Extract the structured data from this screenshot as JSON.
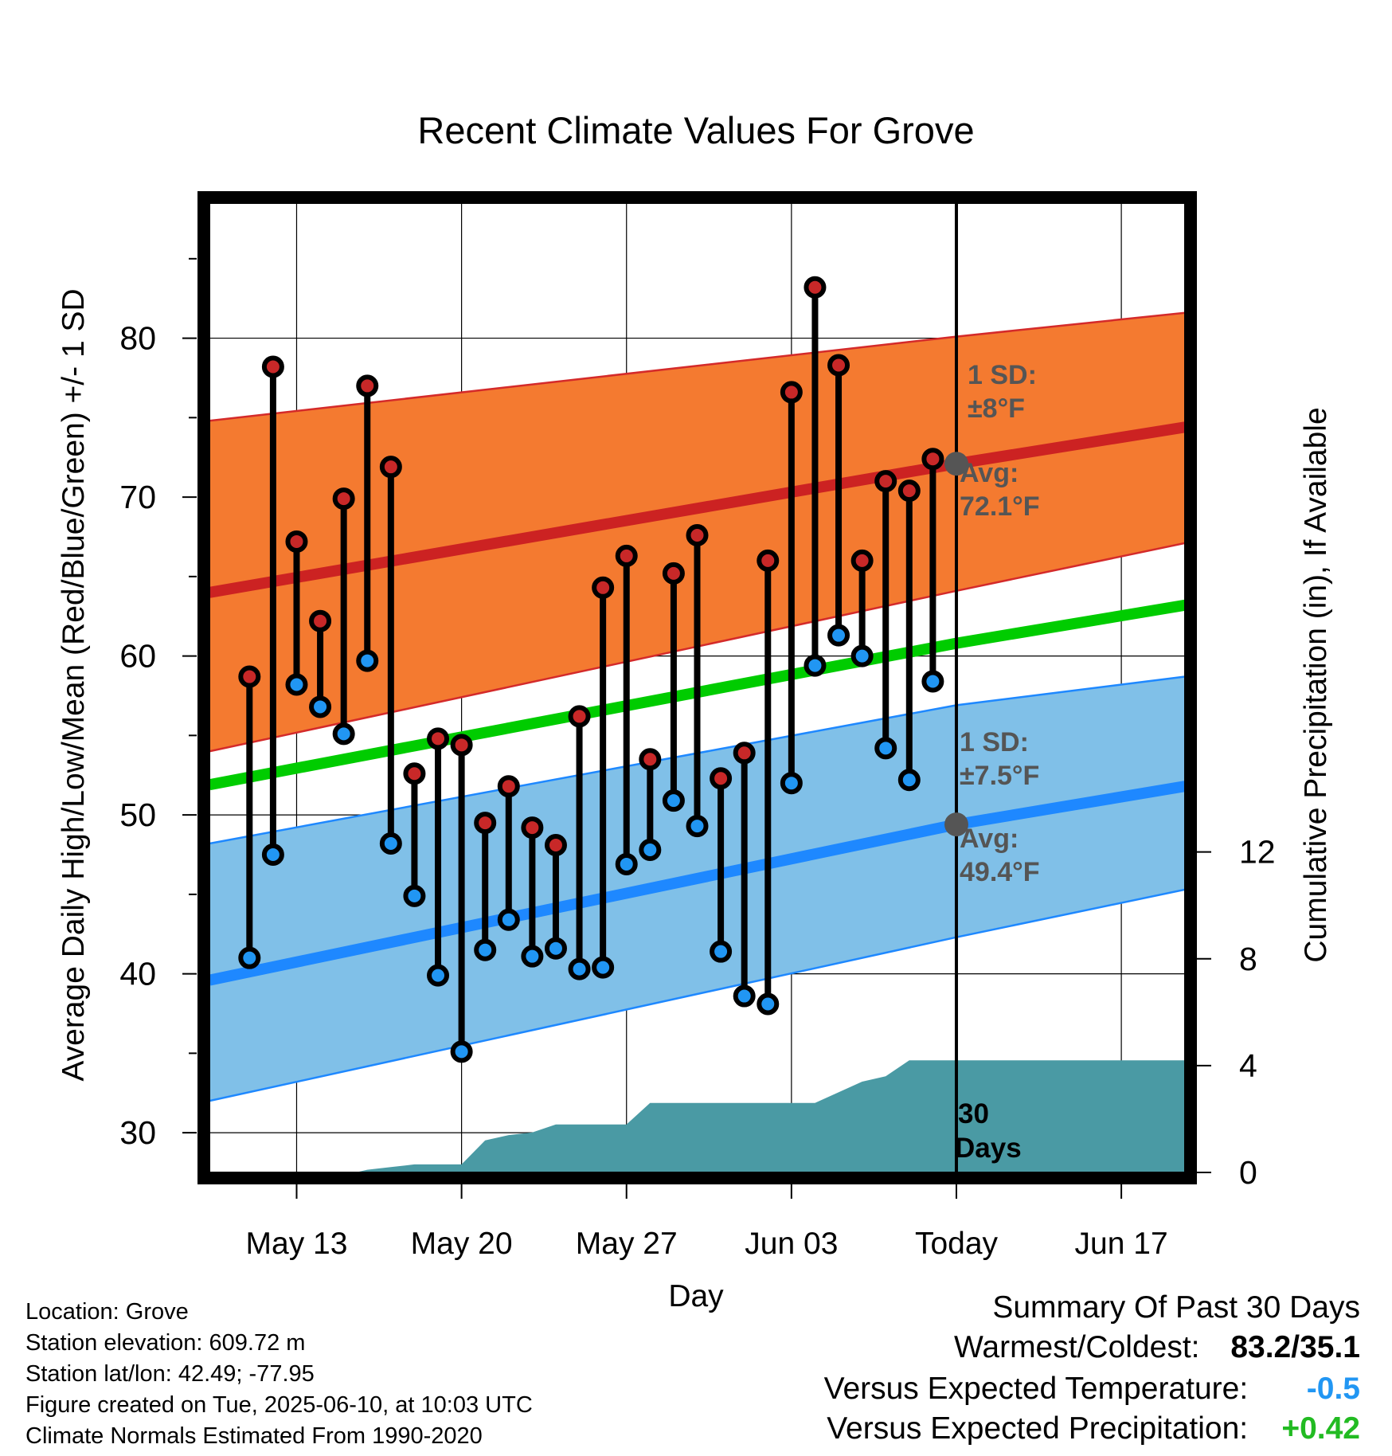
{
  "chart_data": {
    "type": "line",
    "title": "Recent Climate Values For Grove",
    "xlabel": "Day",
    "ylabel_left": "Average Daily High/Low/Mean (Red/Blue/Green) +/- 1 SD",
    "ylabel_right": "Cumulative Precipitation (in), If Available",
    "x_tick_labels": [
      "May 13",
      "May 20",
      "May 27",
      "Jun 03",
      "Today",
      "Jun 17"
    ],
    "x_tick_days": [
      13,
      20,
      27,
      34,
      41,
      48
    ],
    "xlim_days": [
      9.3,
      50.7
    ],
    "today_day": 41,
    "ylim_left": [
      27.5,
      88.5
    ],
    "yticks_left": [
      30,
      40,
      50,
      60,
      70,
      80
    ],
    "ylim_right": [
      0,
      36.3
    ],
    "yticks_right": [
      0,
      4,
      8,
      12
    ],
    "grid": true,
    "daily": {
      "days": [
        11,
        12,
        13,
        14,
        15,
        16,
        17,
        18,
        19,
        20,
        21,
        22,
        23,
        24,
        25,
        26,
        27,
        28,
        29,
        30,
        31,
        32,
        33,
        34,
        35,
        36,
        37,
        38,
        39,
        40
      ],
      "high": [
        58.7,
        78.2,
        67.2,
        62.2,
        69.9,
        77.0,
        71.9,
        52.6,
        54.8,
        54.4,
        49.5,
        51.8,
        49.2,
        48.1,
        56.2,
        64.3,
        66.3,
        53.5,
        65.2,
        67.6,
        52.3,
        53.9,
        66.0,
        76.6,
        83.2,
        78.3,
        66.0,
        71.0,
        70.4,
        72.4
      ],
      "low": [
        41.0,
        47.5,
        58.2,
        56.8,
        55.1,
        59.7,
        48.2,
        44.9,
        39.9,
        35.1,
        41.5,
        43.4,
        41.1,
        41.6,
        40.3,
        40.4,
        46.9,
        47.8,
        50.9,
        49.3,
        41.4,
        38.6,
        38.1,
        52.0,
        59.4,
        61.3,
        60.0,
        54.2,
        52.2,
        58.4
      ]
    },
    "normals": {
      "mean": {
        "start": 51.9,
        "today": 60.8,
        "end": 63.2
      },
      "high_avg": {
        "start": 64.0,
        "today": 72.1,
        "end": 74.4
      },
      "high_upper": {
        "start": 74.8,
        "today": 80.1,
        "end": 81.6
      },
      "high_lower": {
        "start": 54.0,
        "today": 64.1,
        "end": 67.1
      },
      "low_avg": {
        "start": 39.6,
        "today": 49.4,
        "end": 51.8
      },
      "low_upper": {
        "start": 48.2,
        "today": 56.9,
        "end": 58.7
      },
      "low_lower": {
        "start": 32.0,
        "today": 42.3,
        "end": 45.3
      }
    },
    "precip_cumulative": {
      "days": [
        9.3,
        10,
        11,
        12,
        13,
        14,
        15,
        15.5,
        16,
        17,
        18,
        19,
        20,
        21,
        22,
        23,
        24,
        25,
        26,
        27,
        28,
        29,
        30,
        31,
        32,
        33,
        34,
        35,
        36,
        37,
        38,
        39,
        40,
        41,
        50.7
      ],
      "values": [
        0,
        0,
        0,
        0,
        0,
        0,
        0,
        0,
        0.1,
        0.2,
        0.3,
        0.3,
        0.3,
        1.2,
        1.4,
        1.5,
        1.8,
        1.8,
        1.8,
        1.8,
        2.6,
        2.6,
        2.6,
        2.6,
        2.6,
        2.6,
        2.6,
        2.6,
        3.0,
        3.4,
        3.6,
        4.2,
        4.2,
        4.2,
        4.2
      ]
    },
    "annotations": {
      "high_sd_title": "1 SD:",
      "high_sd_value": "±8°F",
      "high_avg_title": "Avg:",
      "high_avg_value": "72.1°F",
      "low_sd_title": "1 SD:",
      "low_sd_value": "±7.5°F",
      "low_avg_title": "Avg:",
      "low_avg_value": "49.4°F",
      "days_number": "30",
      "days_word": "Days"
    },
    "colors": {
      "high_band": "#f47a30",
      "high_avg_line": "#cc2222",
      "low_band": "#80c0e8",
      "low_avg_line": "#1e88ff",
      "mean_line": "#00cc00",
      "precip": "#4a9aa4",
      "high_dot": "#c82828",
      "low_dot": "#2196f3",
      "avg_marker": "#555555",
      "annotation_text": "#555555"
    }
  },
  "meta": {
    "location": "Location: Grove",
    "elevation": "Station elevation: 609.72 m",
    "latlon": "Station lat/lon: 42.49; -77.95",
    "created": "Figure created on Tue, 2025-06-10, at 10:03 UTC",
    "normals": "Climate Normals Estimated From 1990-2020"
  },
  "summary": {
    "title": "Summary Of Past 30 Days",
    "warm_cold_label": "Warmest/Coldest:",
    "warm_cold_value": "83.2/35.1",
    "temp_label": "Versus Expected Temperature:",
    "temp_value": "-0.5",
    "temp_color": "#2196f3",
    "precip_label": "Versus Expected Precipitation:",
    "precip_value": "+0.42",
    "precip_color": "#22bb22"
  }
}
